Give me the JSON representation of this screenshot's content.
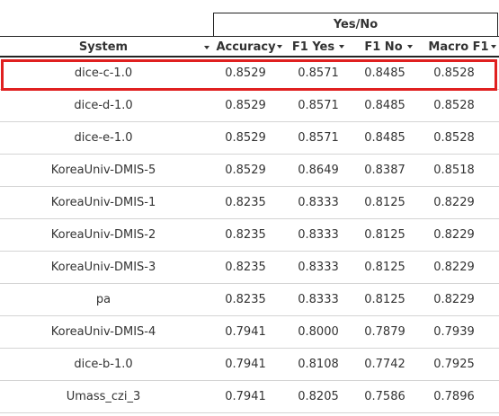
{
  "table": {
    "group_header": "Yes/No",
    "columns": {
      "system": "System",
      "accuracy": "Accuracy",
      "f1_yes": "F1 Yes",
      "f1_no": "F1 No",
      "macro_f1": "Macro F1"
    },
    "rows": [
      {
        "system": "dice-c-1.0",
        "accuracy": "0.8529",
        "f1_yes": "0.8571",
        "f1_no": "0.8485",
        "macro_f1": "0.8528",
        "highlighted": true
      },
      {
        "system": "dice-d-1.0",
        "accuracy": "0.8529",
        "f1_yes": "0.8571",
        "f1_no": "0.8485",
        "macro_f1": "0.8528"
      },
      {
        "system": "dice-e-1.0",
        "accuracy": "0.8529",
        "f1_yes": "0.8571",
        "f1_no": "0.8485",
        "macro_f1": "0.8528"
      },
      {
        "system": "KoreaUniv-DMIS-5",
        "accuracy": "0.8529",
        "f1_yes": "0.8649",
        "f1_no": "0.8387",
        "macro_f1": "0.8518"
      },
      {
        "system": "KoreaUniv-DMIS-1",
        "accuracy": "0.8235",
        "f1_yes": "0.8333",
        "f1_no": "0.8125",
        "macro_f1": "0.8229"
      },
      {
        "system": "KoreaUniv-DMIS-2",
        "accuracy": "0.8235",
        "f1_yes": "0.8333",
        "f1_no": "0.8125",
        "macro_f1": "0.8229"
      },
      {
        "system": "KoreaUniv-DMIS-3",
        "accuracy": "0.8235",
        "f1_yes": "0.8333",
        "f1_no": "0.8125",
        "macro_f1": "0.8229"
      },
      {
        "system": "pa",
        "accuracy": "0.8235",
        "f1_yes": "0.8333",
        "f1_no": "0.8125",
        "macro_f1": "0.8229"
      },
      {
        "system": "KoreaUniv-DMIS-4",
        "accuracy": "0.7941",
        "f1_yes": "0.8000",
        "f1_no": "0.7879",
        "macro_f1": "0.7939"
      },
      {
        "system": "dice-b-1.0",
        "accuracy": "0.7941",
        "f1_yes": "0.8108",
        "f1_no": "0.7742",
        "macro_f1": "0.7925"
      },
      {
        "system": "Umass_czi_3",
        "accuracy": "0.7941",
        "f1_yes": "0.8205",
        "f1_no": "0.7586",
        "macro_f1": "0.7896"
      }
    ]
  },
  "icons": {
    "sort": "chevron-down-icon"
  },
  "colors": {
    "highlight_border": "#e02020",
    "header_rule": "#222222",
    "row_divider": "#d4d4d4",
    "text": "#333333"
  }
}
